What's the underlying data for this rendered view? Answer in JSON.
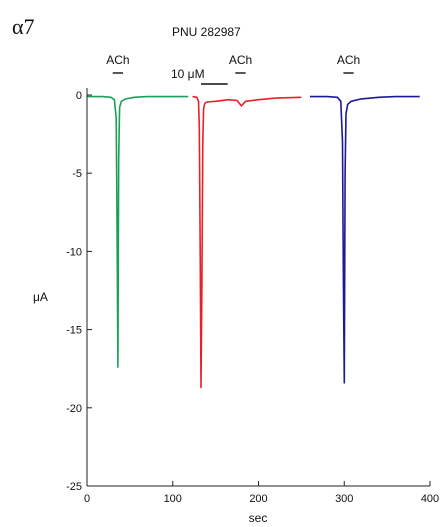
{
  "panel_label": "α7",
  "drug_label": "PNU 282987",
  "conc_label": "10 μM",
  "chart_data": {
    "type": "line",
    "title": "",
    "xlabel": "sec",
    "ylabel": "μA",
    "xlim": [
      0,
      400
    ],
    "ylim": [
      -25,
      0.5
    ],
    "xticks": [
      0,
      100,
      200,
      300,
      400
    ],
    "yticks": [
      0,
      -5,
      -10,
      -15,
      -20,
      -25
    ],
    "grid": false,
    "annotations": [
      {
        "text": "ACh",
        "bar": [
          30,
          42
        ]
      },
      {
        "text": "ACh",
        "bar": [
          173,
          185
        ]
      },
      {
        "text": "ACh",
        "bar": [
          299,
          311
        ]
      }
    ],
    "drug_bar": [
      133,
      164
    ],
    "series": [
      {
        "color": "#1aa05a",
        "x": [
          0,
          18,
          28,
          32,
          34,
          35,
          36,
          37,
          38,
          40,
          45,
          55,
          70,
          90,
          118
        ],
        "y": [
          -0.1,
          -0.1,
          -0.15,
          -0.3,
          -1.5,
          -8,
          -17.4,
          -4,
          -0.8,
          -0.4,
          -0.25,
          -0.15,
          -0.1,
          -0.1,
          -0.1
        ]
      },
      {
        "color": "#e8202a",
        "x": [
          123,
          128,
          130,
          131,
          132,
          133,
          134,
          135,
          136,
          137,
          138,
          140,
          150,
          165,
          175,
          180,
          185,
          200,
          220,
          250
        ],
        "y": [
          -0.1,
          -0.15,
          -0.4,
          -2,
          -10,
          -18.7,
          -12,
          -3,
          -0.9,
          -0.6,
          -0.5,
          -0.45,
          -0.4,
          -0.3,
          -0.35,
          -0.7,
          -0.4,
          -0.3,
          -0.2,
          -0.15
        ]
      },
      {
        "color": "#1a1a99",
        "x": [
          260,
          280,
          292,
          296,
          298,
          299,
          300,
          301,
          302,
          304,
          308,
          320,
          340,
          360,
          388
        ],
        "y": [
          -0.1,
          -0.1,
          -0.15,
          -0.4,
          -3,
          -12,
          -18.4,
          -5,
          -1.2,
          -0.6,
          -0.4,
          -0.25,
          -0.15,
          -0.1,
          -0.1
        ]
      }
    ]
  }
}
